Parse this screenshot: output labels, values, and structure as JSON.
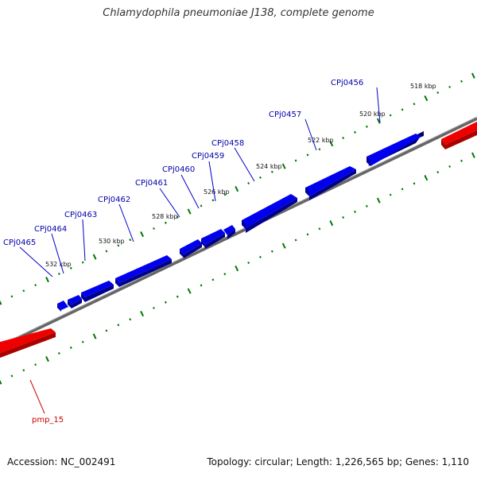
{
  "title": "Chlamydophila pneumoniae J138, complete genome",
  "footer": {
    "accession": "Accession: NC_002491",
    "summary": "Topology: circular; Length: 1,226,565 bp; Genes: 1,110"
  },
  "colors": {
    "forward_strand": "#0000ee",
    "reverse_strand": "#ee0000",
    "backbone": "#888888",
    "ticks": "#007700"
  },
  "tick_labels": [
    "518 kbp",
    "520 kbp",
    "522 kbp",
    "524 kbp",
    "526 kbp",
    "528 kbp",
    "530 kbp",
    "532 kbp"
  ],
  "forward_gene_labels": [
    "CPj0456",
    "CPj0457",
    "CPj0458",
    "CPj0459",
    "CPj0460",
    "CPj0461",
    "CPj0462",
    "CPj0463",
    "CPj0464",
    "CPj0465"
  ],
  "reverse_gene_labels": [
    "pmp_15"
  ]
}
